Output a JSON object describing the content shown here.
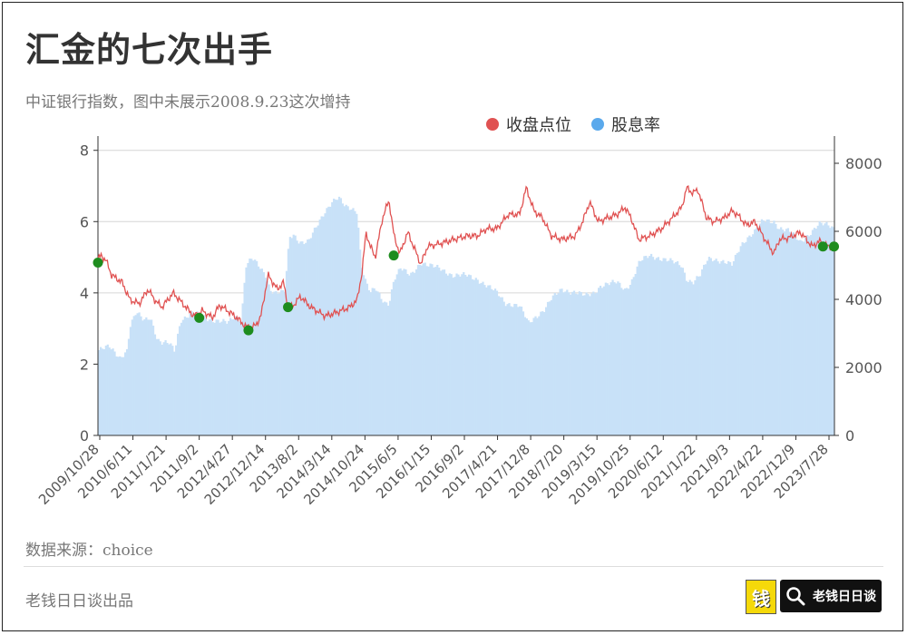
{
  "title": "汇金的七次出手",
  "subtitle": "中证银行指数，图中未展示2008.9.23这次增持",
  "source": "数据来源：choice",
  "brand": "老钱日日谈出品",
  "logo": {
    "badge_glyph": "钱",
    "search_text": "老钱日日谈",
    "icon": "search-icon"
  },
  "colors": {
    "close": "#e05252",
    "yield_fill": "#c8e1f8",
    "yield_legend": "#5aa9ec",
    "markers": "#1e8c1e"
  },
  "chart_data": {
    "type": "bar+line",
    "series": [
      {
        "name": "收盘点位",
        "axis": "left",
        "kind": "line"
      },
      {
        "name": "股息率",
        "axis": "right",
        "kind": "bar"
      }
    ],
    "left_axis": {
      "ylim": [
        0,
        8.4
      ],
      "ticks": [
        "0",
        "2",
        "4",
        "6",
        "8"
      ]
    },
    "right_axis": {
      "ylim": [
        0,
        8800
      ],
      "ticks": [
        "0",
        "2000",
        "4000",
        "6000",
        "8000"
      ]
    },
    "x_range": [
      "2009-10-28",
      "2023-12-31"
    ],
    "x_tick_labels": [
      "2009/10/28",
      "2010/6/11",
      "2011/1/21",
      "2011/9/2",
      "2012/4/27",
      "2012/12/14",
      "2013/8/2",
      "2014/3/14",
      "2014/10/24",
      "2015/6/5",
      "2016/1/15",
      "2016/9/2",
      "2017/4/21",
      "2017/12/8",
      "2018/7/20",
      "2019/3/15",
      "2019/10/25",
      "2020/6/12",
      "2021/1/22",
      "2021/9/3",
      "2022/4/22",
      "2022/12/9",
      "2023/7/28"
    ],
    "close": [
      [
        "2009-10-28",
        4.95
      ],
      [
        "2009-11-20",
        5.05
      ],
      [
        "2009-12-25",
        4.9
      ],
      [
        "2010-02-01",
        4.5
      ],
      [
        "2010-04-15",
        4.3
      ],
      [
        "2010-06-11",
        3.8
      ],
      [
        "2010-08-15",
        3.7
      ],
      [
        "2010-10-15",
        4.1
      ],
      [
        "2010-12-01",
        3.8
      ],
      [
        "2011-01-21",
        3.6
      ],
      [
        "2011-04-10",
        4.0
      ],
      [
        "2011-06-15",
        3.7
      ],
      [
        "2011-09-02",
        3.35
      ],
      [
        "2011-11-01",
        3.5
      ],
      [
        "2012-01-10",
        3.3
      ],
      [
        "2012-03-01",
        3.65
      ],
      [
        "2012-04-27",
        3.5
      ],
      [
        "2012-07-01",
        3.3
      ],
      [
        "2012-09-01",
        3.05
      ],
      [
        "2012-10-30",
        3.05
      ],
      [
        "2012-12-14",
        3.3
      ],
      [
        "2013-02-05",
        4.5
      ],
      [
        "2013-04-10",
        4.1
      ],
      [
        "2013-05-25",
        4.3
      ],
      [
        "2013-06-25",
        3.6
      ],
      [
        "2013-08-02",
        3.65
      ],
      [
        "2013-09-20",
        3.9
      ],
      [
        "2013-12-01",
        3.6
      ],
      [
        "2014-03-14",
        3.35
      ],
      [
        "2014-06-01",
        3.45
      ],
      [
        "2014-09-01",
        3.6
      ],
      [
        "2014-10-24",
        3.8
      ],
      [
        "2014-11-28",
        4.6
      ],
      [
        "2014-12-25",
        5.7
      ],
      [
        "2015-01-25",
        5.3
      ],
      [
        "2015-03-01",
        5.0
      ],
      [
        "2015-04-20",
        6.1
      ],
      [
        "2015-06-05",
        6.6
      ],
      [
        "2015-07-10",
        5.6
      ],
      [
        "2015-08-20",
        5.1
      ],
      [
        "2015-10-15",
        5.7
      ],
      [
        "2016-01-15",
        4.8
      ],
      [
        "2016-03-01",
        5.3
      ],
      [
        "2016-06-15",
        5.4
      ],
      [
        "2016-09-02",
        5.5
      ],
      [
        "2016-12-10",
        5.6
      ],
      [
        "2017-02-15",
        5.6
      ],
      [
        "2017-04-21",
        5.8
      ],
      [
        "2017-07-01",
        5.8
      ],
      [
        "2017-09-20",
        6.2
      ],
      [
        "2017-12-08",
        6.2
      ],
      [
        "2018-01-25",
        6.95
      ],
      [
        "2018-03-20",
        6.3
      ],
      [
        "2018-05-20",
        6.1
      ],
      [
        "2018-07-20",
        5.6
      ],
      [
        "2018-10-01",
        5.5
      ],
      [
        "2019-01-05",
        5.6
      ],
      [
        "2019-02-25",
        6.0
      ],
      [
        "2019-03-15",
        6.2
      ],
      [
        "2019-04-15",
        6.55
      ],
      [
        "2019-06-15",
        6.0
      ],
      [
        "2019-08-15",
        6.1
      ],
      [
        "2019-10-25",
        6.2
      ],
      [
        "2019-12-20",
        6.4
      ],
      [
        "2020-02-01",
        6.1
      ],
      [
        "2020-03-25",
        5.5
      ],
      [
        "2020-06-12",
        5.6
      ],
      [
        "2020-09-01",
        5.8
      ],
      [
        "2020-11-15",
        6.1
      ],
      [
        "2021-01-22",
        6.4
      ],
      [
        "2021-02-25",
        6.95
      ],
      [
        "2021-04-10",
        6.8
      ],
      [
        "2021-05-15",
        6.9
      ],
      [
        "2021-07-15",
        6.1
      ],
      [
        "2021-09-03",
        6.0
      ],
      [
        "2021-11-15",
        6.1
      ],
      [
        "2022-01-10",
        6.3
      ],
      [
        "2022-02-15",
        6.2
      ],
      [
        "2022-04-22",
        5.9
      ],
      [
        "2022-06-20",
        6.0
      ],
      [
        "2022-08-15",
        5.6
      ],
      [
        "2022-10-31",
        5.1
      ],
      [
        "2022-12-09",
        5.5
      ],
      [
        "2023-02-15",
        5.55
      ],
      [
        "2023-05-05",
        5.7
      ],
      [
        "2023-07-28",
        5.3
      ],
      [
        "2023-09-15",
        5.45
      ],
      [
        "2023-11-15",
        5.3
      ],
      [
        "2023-12-31",
        5.3
      ]
    ],
    "dividend_yield": [
      [
        "2009-10-28",
        2500
      ],
      [
        "2010-01-15",
        2600
      ],
      [
        "2010-04-01",
        2300
      ],
      [
        "2010-05-20",
        2500
      ],
      [
        "2010-06-11",
        3200
      ],
      [
        "2010-07-25",
        3600
      ],
      [
        "2010-09-15",
        3400
      ],
      [
        "2010-11-01",
        3500
      ],
      [
        "2010-12-20",
        2800
      ],
      [
        "2011-01-21",
        2700
      ],
      [
        "2011-03-15",
        2700
      ],
      [
        "2011-04-20",
        2500
      ],
      [
        "2011-06-01",
        3400
      ],
      [
        "2011-09-02",
        3600
      ],
      [
        "2011-11-01",
        3500
      ],
      [
        "2012-01-10",
        3400
      ],
      [
        "2012-04-27",
        3300
      ],
      [
        "2012-06-15",
        3500
      ],
      [
        "2012-08-01",
        3400
      ],
      [
        "2012-09-01",
        5000
      ],
      [
        "2012-10-15",
        5200
      ],
      [
        "2012-12-14",
        4900
      ],
      [
        "2013-01-20",
        4700
      ],
      [
        "2013-02-20",
        4300
      ],
      [
        "2013-04-01",
        4200
      ],
      [
        "2013-06-01",
        4200
      ],
      [
        "2013-07-05",
        5800
      ],
      [
        "2013-08-02",
        5900
      ],
      [
        "2013-09-15",
        5700
      ],
      [
        "2013-11-15",
        5700
      ],
      [
        "2014-01-10",
        6100
      ],
      [
        "2014-03-14",
        6600
      ],
      [
        "2014-05-01",
        6900
      ],
      [
        "2014-06-15",
        7000
      ],
      [
        "2014-08-01",
        6700
      ],
      [
        "2014-10-24",
        6600
      ],
      [
        "2014-11-20",
        5100
      ],
      [
        "2014-12-25",
        4500
      ],
      [
        "2015-01-25",
        4200
      ],
      [
        "2015-03-01",
        4300
      ],
      [
        "2015-04-15",
        4000
      ],
      [
        "2015-05-10",
        3900
      ],
      [
        "2015-06-05",
        3900
      ],
      [
        "2015-07-10",
        4600
      ],
      [
        "2015-08-25",
        4900
      ],
      [
        "2015-11-01",
        4700
      ],
      [
        "2016-01-15",
        5100
      ],
      [
        "2016-03-01",
        5000
      ],
      [
        "2016-06-01",
        4900
      ],
      [
        "2016-09-02",
        4700
      ],
      [
        "2016-12-01",
        4700
      ],
      [
        "2017-02-15",
        4600
      ],
      [
        "2017-04-21",
        4400
      ],
      [
        "2017-07-01",
        4200
      ],
      [
        "2017-09-01",
        3900
      ],
      [
        "2017-12-08",
        3800
      ],
      [
        "2018-02-10",
        3300
      ],
      [
        "2018-04-01",
        3500
      ],
      [
        "2018-06-01",
        3700
      ],
      [
        "2018-07-20",
        4000
      ],
      [
        "2018-10-01",
        4300
      ],
      [
        "2019-01-05",
        4200
      ],
      [
        "2019-03-15",
        4100
      ],
      [
        "2019-05-15",
        4200
      ],
      [
        "2019-07-01",
        4400
      ],
      [
        "2019-10-25",
        4500
      ],
      [
        "2019-12-20",
        4300
      ],
      [
        "2020-02-01",
        4500
      ],
      [
        "2020-04-01",
        5100
      ],
      [
        "2020-06-12",
        5300
      ],
      [
        "2020-09-01",
        5200
      ],
      [
        "2020-11-15",
        5100
      ],
      [
        "2021-01-22",
        5000
      ],
      [
        "2021-02-25",
        4600
      ],
      [
        "2021-04-10",
        4500
      ],
      [
        "2021-06-01",
        4700
      ],
      [
        "2021-07-25",
        5200
      ],
      [
        "2021-09-03",
        5200
      ],
      [
        "2021-11-15",
        5100
      ],
      [
        "2022-01-10",
        5000
      ],
      [
        "2022-03-15",
        5600
      ],
      [
        "2022-04-22",
        5800
      ],
      [
        "2022-06-20",
        6000
      ],
      [
        "2022-08-15",
        6300
      ],
      [
        "2022-10-31",
        6300
      ],
      [
        "2022-12-09",
        6100
      ],
      [
        "2023-02-15",
        6000
      ],
      [
        "2023-05-05",
        5700
      ],
      [
        "2023-07-28",
        6000
      ],
      [
        "2023-09-15",
        6200
      ],
      [
        "2023-11-15",
        6200
      ],
      [
        "2023-12-31",
        6100
      ]
    ],
    "intervention_markers": [
      [
        "2009-10-28",
        4.85
      ],
      [
        "2011-10-10",
        3.3
      ],
      [
        "2012-09-20",
        2.95
      ],
      [
        "2013-06-25",
        3.6
      ],
      [
        "2015-07-08",
        5.05
      ],
      [
        "2023-10-11",
        5.3
      ],
      [
        "2023-12-28",
        5.3
      ]
    ]
  }
}
